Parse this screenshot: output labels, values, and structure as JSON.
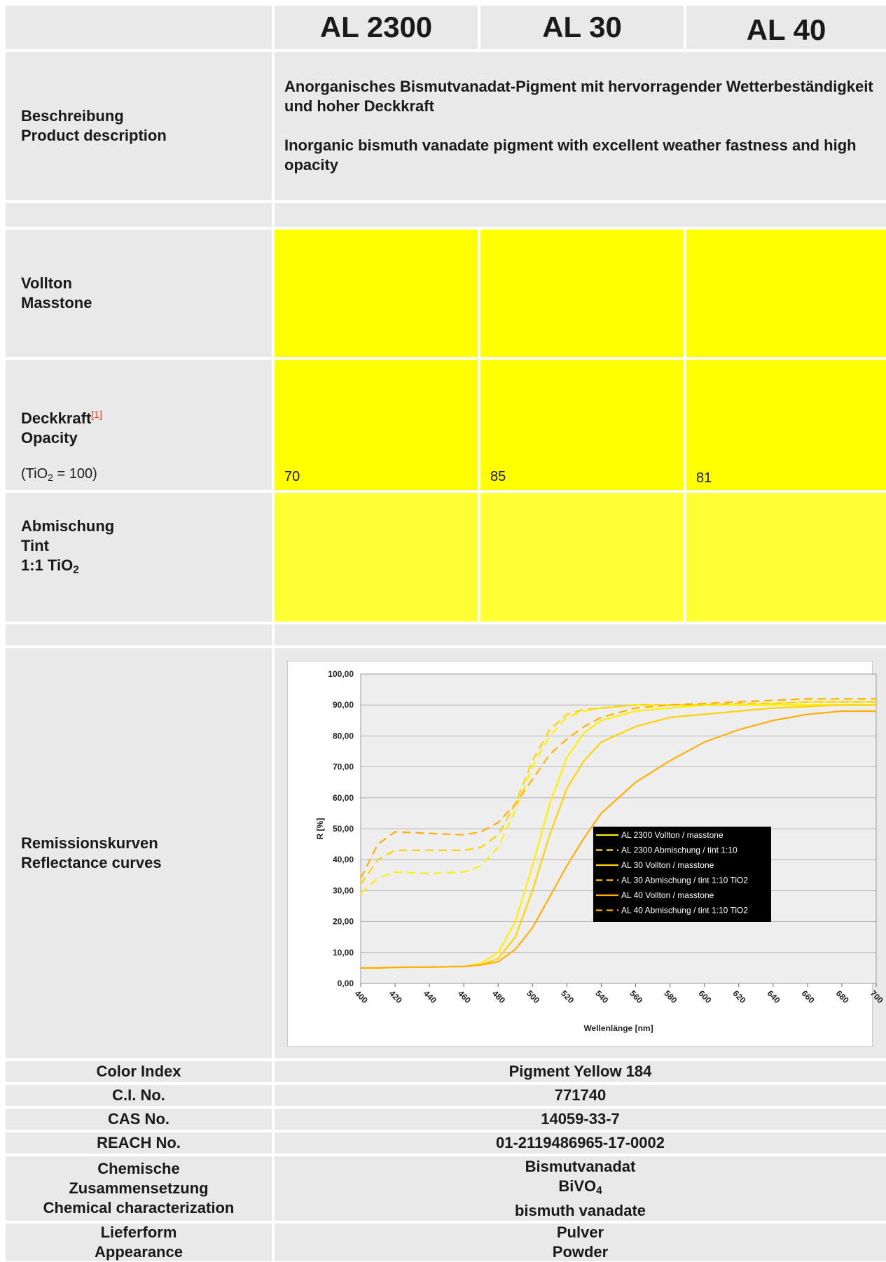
{
  "products": [
    "AL 2300",
    "AL 30",
    "AL 40"
  ],
  "description": {
    "label_de": "Beschreibung",
    "label_en": "Product description",
    "text_de": "Anorganisches Bismutvanadat-Pigment mit hervorragender Wetterbeständigkeit und hoher Deckkraft",
    "text_en": "Inorganic bismuth vanadate pigment with excellent weather fastness and high opacity"
  },
  "masstone": {
    "label_de": "Vollton",
    "label_en": "Masstone",
    "color": "#ffff00"
  },
  "opacity": {
    "label_de": "Deckkraft",
    "footnote": "[1]",
    "label_en": "Opacity",
    "reference_pre": "(TiO",
    "reference_sub": "2",
    "reference_post": " = 100)",
    "values": [
      "70",
      "85",
      "81"
    ]
  },
  "tint": {
    "label_de": "Abmischung",
    "label_en": "Tint",
    "ratio_pre": "1:1 TiO",
    "ratio_sub": "2",
    "color": "#ffff33"
  },
  "reflectance": {
    "label_de": "Remissionskurven",
    "label_en": "Reflectance curves"
  },
  "chart_data": {
    "type": "line",
    "xlabel": "Wellenlänge [nm]",
    "ylabel": "R [%]",
    "xlim": [
      400,
      700
    ],
    "ylim": [
      0,
      100
    ],
    "x_ticks": [
      400,
      420,
      440,
      460,
      480,
      500,
      520,
      540,
      560,
      580,
      600,
      620,
      640,
      660,
      680,
      700
    ],
    "y_ticks": [
      "0,00",
      "10,00",
      "20,00",
      "30,00",
      "40,00",
      "50,00",
      "60,00",
      "70,00",
      "80,00",
      "90,00",
      "100,00"
    ],
    "grid": true,
    "legend_position": "right",
    "x": [
      400,
      410,
      420,
      440,
      460,
      470,
      480,
      490,
      500,
      510,
      520,
      530,
      540,
      560,
      580,
      600,
      620,
      640,
      660,
      680,
      700
    ],
    "series": [
      {
        "name": "AL 2300 Vollton / masstone",
        "color": "#fff000",
        "dash": false,
        "values": [
          5,
          5,
          5.2,
          5.3,
          5.5,
          6.5,
          10,
          20,
          38,
          58,
          73,
          81,
          85,
          88,
          89,
          90,
          90,
          90,
          90,
          90,
          90
        ]
      },
      {
        "name": "AL 2300 Abmischung / tint 1:10",
        "color": "#fff000",
        "dash": true,
        "values": [
          29,
          34,
          36,
          35.5,
          36,
          38,
          44,
          56,
          70,
          80,
          86,
          88,
          89,
          90,
          90,
          90,
          90,
          90.5,
          91,
          91,
          91
        ]
      },
      {
        "name": "AL 30 Vollton / masstone",
        "color": "#ffd200",
        "dash": false,
        "values": [
          5,
          5,
          5.2,
          5.3,
          5.5,
          6,
          8,
          15,
          30,
          48,
          63,
          72,
          78,
          83,
          86,
          87,
          88,
          89,
          89.5,
          90,
          90
        ]
      },
      {
        "name": "AL 30 Abmischung / tint 1:10 TiO2",
        "color": "#ffd200",
        "dash": true,
        "values": [
          32,
          40,
          43,
          43,
          43,
          44,
          48,
          58,
          72,
          82,
          87,
          88.5,
          89,
          90,
          90,
          90,
          90.5,
          90.5,
          91,
          91,
          91
        ]
      },
      {
        "name": "AL 40 Vollton / masstone",
        "color": "#ffb000",
        "dash": false,
        "values": [
          5,
          5,
          5.2,
          5.3,
          5.5,
          6,
          7,
          11,
          18,
          28,
          38,
          47,
          55,
          65,
          72,
          78,
          82,
          85,
          87,
          88,
          88
        ]
      },
      {
        "name": "AL 40 Abmischung / tint 1:10 TiO2",
        "color": "#ffb000",
        "dash": true,
        "values": [
          34,
          45,
          49,
          48.5,
          48,
          49,
          52,
          58,
          66,
          74,
          79,
          83,
          86,
          89,
          90,
          90.5,
          91,
          91.5,
          92,
          92,
          92
        ]
      }
    ]
  },
  "properties": [
    {
      "label": [
        "Color Index"
      ],
      "value": [
        "Pigment Yellow 184"
      ]
    },
    {
      "label": [
        "C.I. No."
      ],
      "value": [
        "771740"
      ]
    },
    {
      "label": [
        "CAS No."
      ],
      "value": [
        "14059-33-7"
      ]
    },
    {
      "label": [
        "REACH No."
      ],
      "value": [
        "01-2119486965-17-0002"
      ]
    },
    {
      "label": [
        "Chemische",
        "Zusammensetzung",
        "Chemical characterization"
      ],
      "value": [
        "Bismutvanadat",
        "BiVO4",
        "bismuth vanadate"
      ]
    },
    {
      "label": [
        "Lieferform",
        "Appearance"
      ],
      "value": [
        "Pulver",
        "Powder"
      ]
    }
  ]
}
